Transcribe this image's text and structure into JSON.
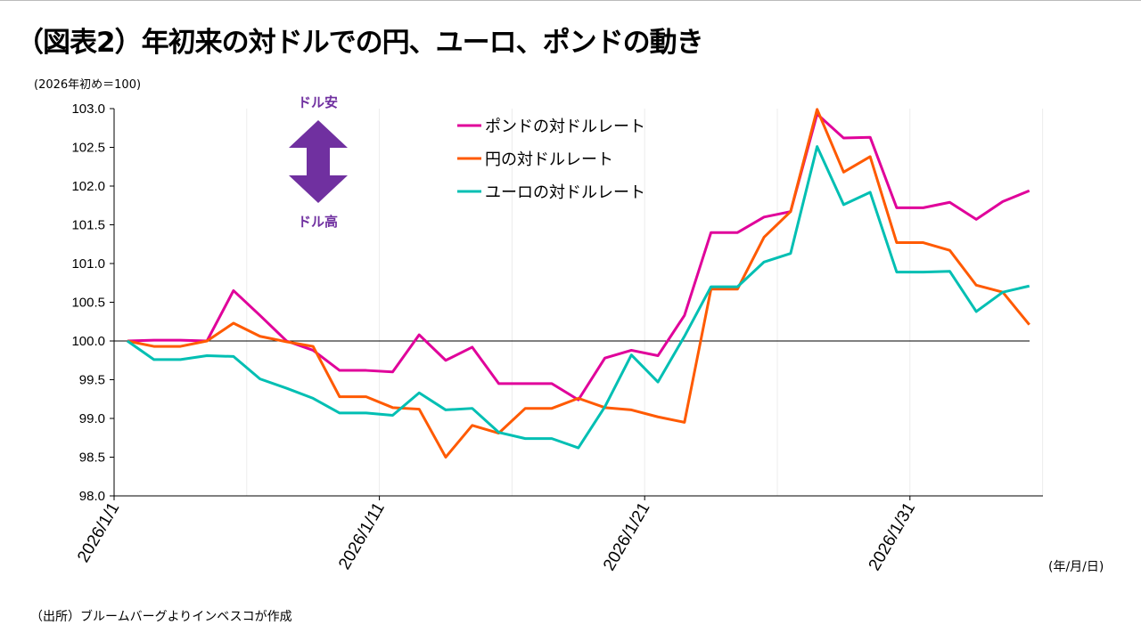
{
  "title": "（図表2）年初来の対ドルでの円、ユーロ、ポンドの動き",
  "unit_label": "(2026年初め＝100)",
  "x_unit_label": "(年/月/日)",
  "source": "（出所）ブルームバーグよりインベスコが作成",
  "annotation": {
    "up_label": "ドル安",
    "down_label": "ドル高",
    "color": "#7030A0",
    "icon": "double-arrow-up-down-icon"
  },
  "chart_data": {
    "type": "line",
    "x_start": "2026/1/1",
    "x": [
      "2026/1/1",
      "2026/1/2",
      "2026/1/3",
      "2026/1/4",
      "2026/1/5",
      "2026/1/6",
      "2026/1/7",
      "2026/1/8",
      "2026/1/9",
      "2026/1/10",
      "2026/1/11",
      "2026/1/12",
      "2026/1/13",
      "2026/1/14",
      "2026/1/15",
      "2026/1/16",
      "2026/1/17",
      "2026/1/18",
      "2026/1/19",
      "2026/1/20",
      "2026/1/21",
      "2026/1/22",
      "2026/1/23",
      "2026/1/24",
      "2026/1/25",
      "2026/1/26",
      "2026/1/27",
      "2026/1/28",
      "2026/1/29",
      "2026/1/30",
      "2026/1/31",
      "2026/2/1",
      "2026/2/2",
      "2026/2/3",
      "2026/2/4"
    ],
    "x_tick_labels": [
      "2026/1/1",
      "2026/1/11",
      "2026/1/21",
      "2026/1/31"
    ],
    "ylim": [
      98.0,
      103.0
    ],
    "y_ticks": [
      "98.0",
      "98.5",
      "99.0",
      "99.5",
      "100.0",
      "100.5",
      "101.0",
      "101.5",
      "102.0",
      "102.5",
      "103.0"
    ],
    "reference_line": 100,
    "legend_position": "top-center",
    "series": [
      {
        "name": "ポンドの対ドルレート",
        "color": "#E0009A",
        "values": [
          100,
          100.01,
          100.01,
          100.0,
          100.65,
          100.33,
          100.0,
          99.88,
          99.62,
          99.62,
          99.6,
          100.08,
          99.75,
          99.92,
          99.45,
          99.45,
          99.45,
          99.24,
          99.78,
          99.88,
          99.81,
          100.33,
          101.4,
          101.4,
          101.6,
          101.67,
          102.93,
          102.62,
          102.63,
          101.72,
          101.72,
          101.79,
          101.57,
          101.8,
          101.94
        ]
      },
      {
        "name": "円の対ドルレート",
        "color": "#FF5A00",
        "values": [
          100,
          99.93,
          99.93,
          100.0,
          100.23,
          100.06,
          99.99,
          99.93,
          99.28,
          99.28,
          99.14,
          99.12,
          98.5,
          98.91,
          98.81,
          99.13,
          99.13,
          99.26,
          99.14,
          99.11,
          99.02,
          98.95,
          100.67,
          100.67,
          101.34,
          101.67,
          102.99,
          102.18,
          102.38,
          101.27,
          101.27,
          101.17,
          100.72,
          100.63,
          100.21
        ]
      },
      {
        "name": "ユーロの対ドルレート",
        "color": "#00BFB3",
        "values": [
          100,
          99.76,
          99.76,
          99.81,
          99.8,
          99.51,
          99.39,
          99.26,
          99.07,
          99.07,
          99.04,
          99.33,
          99.11,
          99.13,
          98.82,
          98.74,
          98.74,
          98.62,
          99.15,
          99.82,
          99.47,
          100.06,
          100.7,
          100.7,
          101.02,
          101.13,
          102.51,
          101.76,
          101.92,
          100.89,
          100.89,
          100.9,
          100.38,
          100.63,
          100.71
        ]
      }
    ]
  }
}
